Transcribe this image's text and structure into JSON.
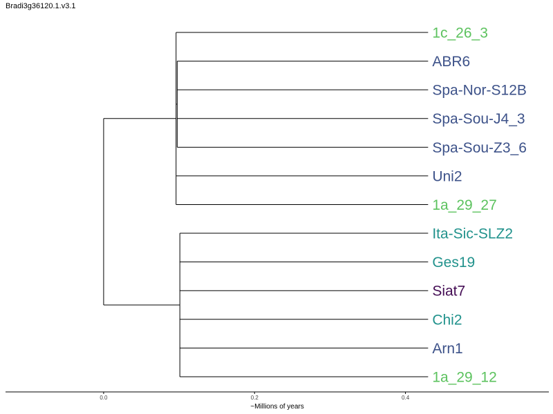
{
  "title": "Bradi3g36120.1.v3.1",
  "chart_data": {
    "type": "dendrogram",
    "xlabel": "~Millions of years",
    "xlim": [
      -0.13,
      0.59
    ],
    "ticks": [
      {
        "value": 0.0,
        "label": "0.0"
      },
      {
        "value": 0.2,
        "label": "0.2"
      },
      {
        "value": 0.4,
        "label": "0.4"
      }
    ],
    "leaf_depth": 0.43,
    "colors": {
      "light_green": "#5cc25e",
      "blue": "#3d5289",
      "teal": "#21928c",
      "purple": "#440d54"
    },
    "root": {
      "depth": 0.0,
      "children": [
        {
          "depth": 0.096,
          "children": [
            {
              "name": "1c_26_3",
              "color": "light_green"
            },
            {
              "depth": 0.0975,
              "children": [
                {
                  "name": "ABR6",
                  "color": "blue"
                },
                {
                  "name": "Spa-Nor-S12B",
                  "color": "blue"
                },
                {
                  "name": "Spa-Sou-J4_3",
                  "color": "blue"
                },
                {
                  "name": "Spa-Sou-Z3_6",
                  "color": "blue"
                }
              ]
            },
            {
              "name": "Uni2",
              "color": "blue"
            },
            {
              "name": "1a_29_27",
              "color": "light_green"
            }
          ]
        },
        {
          "depth": 0.101,
          "children": [
            {
              "name": "Ita-Sic-SLZ2",
              "color": "teal"
            },
            {
              "name": "Ges19",
              "color": "teal"
            },
            {
              "name": "Siat7",
              "color": "purple"
            },
            {
              "name": "Chi2",
              "color": "teal"
            },
            {
              "name": "Arn1",
              "color": "blue"
            },
            {
              "name": "1a_29_12",
              "color": "light_green"
            }
          ]
        }
      ]
    }
  }
}
